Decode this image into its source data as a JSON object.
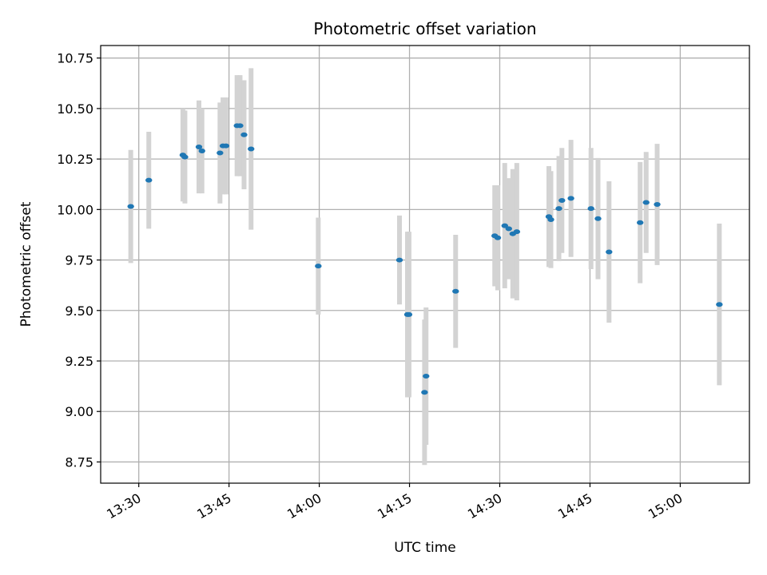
{
  "chart_data": {
    "type": "scatter",
    "title": "Photometric offset variation",
    "xlabel": "UTC time",
    "ylabel": "Photometric offset",
    "xlim": [
      "13:23:40",
      "15:11:30"
    ],
    "ylim": [
      8.645,
      10.812
    ],
    "x_tick_labels": [
      "13:30",
      "13:45",
      "14:00",
      "14:15",
      "14:30",
      "14:45",
      "15:00"
    ],
    "y_tick_labels": [
      "8.75",
      "9.00",
      "9.25",
      "9.50",
      "9.75",
      "10.00",
      "10.25",
      "10.50",
      "10.75"
    ],
    "grid": true,
    "legend": "none",
    "colors": {
      "point": "#1f77b4",
      "errorbar": "#d3d3d3",
      "grid": "#b0b0b0",
      "axis": "#000000"
    },
    "points": [
      {
        "x": "13:28:40",
        "y": 10.015,
        "yerr": 0.28
      },
      {
        "x": "13:31:40",
        "y": 10.145,
        "yerr": 0.24
      },
      {
        "x": "13:37:20",
        "y": 10.27,
        "yerr": 0.23
      },
      {
        "x": "13:37:40",
        "y": 10.26,
        "yerr": 0.23
      },
      {
        "x": "13:40:00",
        "y": 10.31,
        "yerr": 0.23
      },
      {
        "x": "13:40:30",
        "y": 10.29,
        "yerr": 0.21
      },
      {
        "x": "13:43:30",
        "y": 10.28,
        "yerr": 0.25
      },
      {
        "x": "13:44:00",
        "y": 10.315,
        "yerr": 0.24
      },
      {
        "x": "13:44:30",
        "y": 10.315,
        "yerr": 0.24
      },
      {
        "x": "13:46:20",
        "y": 10.415,
        "yerr": 0.25
      },
      {
        "x": "13:46:50",
        "y": 10.415,
        "yerr": 0.25
      },
      {
        "x": "13:47:30",
        "y": 10.37,
        "yerr": 0.27
      },
      {
        "x": "13:48:40",
        "y": 10.3,
        "yerr": 0.4
      },
      {
        "x": "13:59:50",
        "y": 9.72,
        "yerr": 0.24
      },
      {
        "x": "14:13:20",
        "y": 9.75,
        "yerr": 0.22
      },
      {
        "x": "14:14:40",
        "y": 9.48,
        "yerr": 0.41
      },
      {
        "x": "14:14:55",
        "y": 9.48,
        "yerr": 0.41
      },
      {
        "x": "14:17:30",
        "y": 9.095,
        "yerr": 0.36
      },
      {
        "x": "14:17:45",
        "y": 9.175,
        "yerr": 0.34
      },
      {
        "x": "14:22:40",
        "y": 9.595,
        "yerr": 0.28
      },
      {
        "x": "14:29:10",
        "y": 9.87,
        "yerr": 0.25
      },
      {
        "x": "14:29:40",
        "y": 9.86,
        "yerr": 0.26
      },
      {
        "x": "14:30:50",
        "y": 9.92,
        "yerr": 0.31
      },
      {
        "x": "14:31:30",
        "y": 9.905,
        "yerr": 0.25
      },
      {
        "x": "14:32:10",
        "y": 9.88,
        "yerr": 0.32
      },
      {
        "x": "14:32:50",
        "y": 9.89,
        "yerr": 0.34
      },
      {
        "x": "14:38:10",
        "y": 9.965,
        "yerr": 0.25
      },
      {
        "x": "14:38:30",
        "y": 9.95,
        "yerr": 0.24
      },
      {
        "x": "14:39:50",
        "y": 10.005,
        "yerr": 0.26
      },
      {
        "x": "14:40:20",
        "y": 10.045,
        "yerr": 0.26
      },
      {
        "x": "14:41:50",
        "y": 10.055,
        "yerr": 0.29
      },
      {
        "x": "14:45:10",
        "y": 10.005,
        "yerr": 0.3
      },
      {
        "x": "14:46:20",
        "y": 9.955,
        "yerr": 0.3
      },
      {
        "x": "14:48:10",
        "y": 9.79,
        "yerr": 0.35
      },
      {
        "x": "14:53:20",
        "y": 9.935,
        "yerr": 0.3
      },
      {
        "x": "14:54:20",
        "y": 10.035,
        "yerr": 0.25
      },
      {
        "x": "14:56:10",
        "y": 10.025,
        "yerr": 0.3
      },
      {
        "x": "15:06:30",
        "y": 9.53,
        "yerr": 0.4
      }
    ]
  }
}
